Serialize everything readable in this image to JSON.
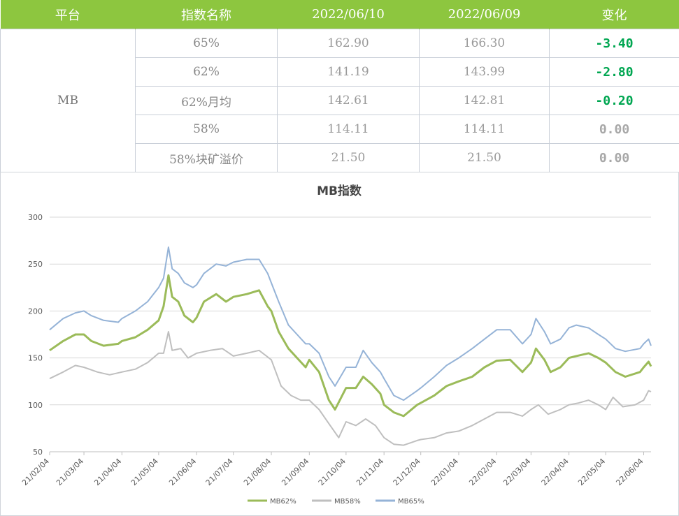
{
  "table": {
    "headers": [
      "平台",
      "指数名称",
      "2022/06/10",
      "2022/06/09",
      "变化"
    ],
    "platform": "MB",
    "rows": [
      {
        "name": "65%",
        "cur": "162.90",
        "prev": "166.30",
        "change": "-3.40"
      },
      {
        "name": "62%",
        "cur": "141.19",
        "prev": "143.99",
        "change": "-2.80"
      },
      {
        "name": "62%月均",
        "cur": "142.61",
        "prev": "142.81",
        "change": "-0.20"
      },
      {
        "name": "58%",
        "cur": "114.11",
        "prev": "114.11",
        "change": "0.00"
      },
      {
        "name": "58%块矿溢价",
        "cur": "21.50",
        "prev": "21.50",
        "change": "0.00"
      }
    ]
  },
  "colors": {
    "header_bg": "#8dc63f",
    "negative": "#00a651",
    "zero": "#a8a8a8"
  },
  "chart_data": {
    "type": "line",
    "title": "MB指数",
    "x_ticks": [
      "21/02/04",
      "21/03/04",
      "21/04/04",
      "21/05/04",
      "21/06/04",
      "21/07/04",
      "21/08/04",
      "21/09/04",
      "21/10/04",
      "21/11/04",
      "21/12/04",
      "22/01/04",
      "22/02/04",
      "22/03/04",
      "22/04/04",
      "22/05/04",
      "22/06/04"
    ],
    "ylim": [
      50,
      300
    ],
    "y_ticks": [
      50,
      100,
      150,
      200,
      250,
      300
    ],
    "grid": true,
    "legend_position": "bottom",
    "series": [
      {
        "name": "MB62%",
        "color": "#9bbb59",
        "points": [
          [
            "2021-02-04",
            158
          ],
          [
            "2021-02-15",
            168
          ],
          [
            "2021-02-25",
            175
          ],
          [
            "2021-03-04",
            175
          ],
          [
            "2021-03-10",
            168
          ],
          [
            "2021-03-20",
            163
          ],
          [
            "2021-04-01",
            165
          ],
          [
            "2021-04-04",
            168
          ],
          [
            "2021-04-15",
            172
          ],
          [
            "2021-04-25",
            180
          ],
          [
            "2021-05-04",
            190
          ],
          [
            "2021-05-08",
            205
          ],
          [
            "2021-05-12",
            238
          ],
          [
            "2021-05-15",
            215
          ],
          [
            "2021-05-20",
            210
          ],
          [
            "2021-05-25",
            195
          ],
          [
            "2021-06-01",
            188
          ],
          [
            "2021-06-04",
            193
          ],
          [
            "2021-06-10",
            210
          ],
          [
            "2021-06-20",
            218
          ],
          [
            "2021-06-28",
            210
          ],
          [
            "2021-07-04",
            215
          ],
          [
            "2021-07-15",
            218
          ],
          [
            "2021-07-25",
            222
          ],
          [
            "2021-08-01",
            205
          ],
          [
            "2021-08-04",
            200
          ],
          [
            "2021-08-10",
            178
          ],
          [
            "2021-08-18",
            160
          ],
          [
            "2021-08-25",
            150
          ],
          [
            "2021-09-01",
            140
          ],
          [
            "2021-09-04",
            148
          ],
          [
            "2021-09-12",
            135
          ],
          [
            "2021-09-20",
            105
          ],
          [
            "2021-09-25",
            95
          ],
          [
            "2021-10-04",
            118
          ],
          [
            "2021-10-12",
            118
          ],
          [
            "2021-10-18",
            130
          ],
          [
            "2021-10-25",
            122
          ],
          [
            "2021-11-01",
            112
          ],
          [
            "2021-11-04",
            100
          ],
          [
            "2021-11-12",
            92
          ],
          [
            "2021-11-20",
            88
          ],
          [
            "2021-12-01",
            100
          ],
          [
            "2021-12-04",
            102
          ],
          [
            "2021-12-15",
            110
          ],
          [
            "2021-12-25",
            120
          ],
          [
            "2022-01-04",
            125
          ],
          [
            "2022-01-15",
            130
          ],
          [
            "2022-01-25",
            140
          ],
          [
            "2022-02-04",
            147
          ],
          [
            "2022-02-15",
            148
          ],
          [
            "2022-02-25",
            135
          ],
          [
            "2022-03-04",
            145
          ],
          [
            "2022-03-08",
            160
          ],
          [
            "2022-03-15",
            148
          ],
          [
            "2022-03-20",
            135
          ],
          [
            "2022-03-28",
            140
          ],
          [
            "2022-04-04",
            150
          ],
          [
            "2022-04-10",
            152
          ],
          [
            "2022-04-20",
            155
          ],
          [
            "2022-04-28",
            150
          ],
          [
            "2022-05-04",
            145
          ],
          [
            "2022-05-12",
            135
          ],
          [
            "2022-05-20",
            130
          ],
          [
            "2022-06-01",
            135
          ],
          [
            "2022-06-04",
            140
          ],
          [
            "2022-06-08",
            146
          ],
          [
            "2022-06-10",
            141
          ]
        ]
      },
      {
        "name": "MB58%",
        "color": "#bfbfbf",
        "points": [
          [
            "2021-02-04",
            128
          ],
          [
            "2021-02-15",
            135
          ],
          [
            "2021-02-25",
            142
          ],
          [
            "2021-03-04",
            140
          ],
          [
            "2021-03-15",
            135
          ],
          [
            "2021-03-25",
            132
          ],
          [
            "2021-04-04",
            135
          ],
          [
            "2021-04-15",
            138
          ],
          [
            "2021-04-25",
            145
          ],
          [
            "2021-05-04",
            155
          ],
          [
            "2021-05-08",
            155
          ],
          [
            "2021-05-12",
            178
          ],
          [
            "2021-05-15",
            158
          ],
          [
            "2021-05-22",
            160
          ],
          [
            "2021-05-28",
            150
          ],
          [
            "2021-06-04",
            155
          ],
          [
            "2021-06-15",
            158
          ],
          [
            "2021-06-25",
            160
          ],
          [
            "2021-07-04",
            152
          ],
          [
            "2021-07-15",
            155
          ],
          [
            "2021-07-25",
            158
          ],
          [
            "2021-08-04",
            148
          ],
          [
            "2021-08-12",
            120
          ],
          [
            "2021-08-20",
            110
          ],
          [
            "2021-08-28",
            105
          ],
          [
            "2021-09-04",
            105
          ],
          [
            "2021-09-12",
            95
          ],
          [
            "2021-09-20",
            80
          ],
          [
            "2021-09-28",
            65
          ],
          [
            "2021-10-04",
            82
          ],
          [
            "2021-10-12",
            78
          ],
          [
            "2021-10-20",
            85
          ],
          [
            "2021-10-28",
            78
          ],
          [
            "2021-11-04",
            65
          ],
          [
            "2021-11-12",
            58
          ],
          [
            "2021-11-20",
            57
          ],
          [
            "2021-12-01",
            62
          ],
          [
            "2021-12-04",
            63
          ],
          [
            "2021-12-15",
            65
          ],
          [
            "2021-12-25",
            70
          ],
          [
            "2022-01-04",
            72
          ],
          [
            "2022-01-15",
            78
          ],
          [
            "2022-01-25",
            85
          ],
          [
            "2022-02-04",
            92
          ],
          [
            "2022-02-15",
            92
          ],
          [
            "2022-02-25",
            88
          ],
          [
            "2022-03-04",
            95
          ],
          [
            "2022-03-10",
            100
          ],
          [
            "2022-03-18",
            90
          ],
          [
            "2022-03-28",
            95
          ],
          [
            "2022-04-04",
            100
          ],
          [
            "2022-04-12",
            102
          ],
          [
            "2022-04-20",
            105
          ],
          [
            "2022-04-28",
            100
          ],
          [
            "2022-05-04",
            95
          ],
          [
            "2022-05-10",
            108
          ],
          [
            "2022-05-18",
            98
          ],
          [
            "2022-05-28",
            100
          ],
          [
            "2022-06-04",
            105
          ],
          [
            "2022-06-08",
            115
          ],
          [
            "2022-06-10",
            114
          ]
        ]
      },
      {
        "name": "MB65%",
        "color": "#95b3d7",
        "points": [
          [
            "2021-02-04",
            180
          ],
          [
            "2021-02-15",
            192
          ],
          [
            "2021-02-25",
            198
          ],
          [
            "2021-03-04",
            200
          ],
          [
            "2021-03-10",
            195
          ],
          [
            "2021-03-20",
            190
          ],
          [
            "2021-04-01",
            188
          ],
          [
            "2021-04-04",
            192
          ],
          [
            "2021-04-15",
            200
          ],
          [
            "2021-04-25",
            210
          ],
          [
            "2021-05-04",
            225
          ],
          [
            "2021-05-08",
            235
          ],
          [
            "2021-05-12",
            268
          ],
          [
            "2021-05-15",
            245
          ],
          [
            "2021-05-20",
            240
          ],
          [
            "2021-05-25",
            230
          ],
          [
            "2021-06-01",
            225
          ],
          [
            "2021-06-04",
            228
          ],
          [
            "2021-06-10",
            240
          ],
          [
            "2021-06-20",
            250
          ],
          [
            "2021-06-28",
            248
          ],
          [
            "2021-07-04",
            252
          ],
          [
            "2021-07-15",
            255
          ],
          [
            "2021-07-25",
            255
          ],
          [
            "2021-08-01",
            240
          ],
          [
            "2021-08-04",
            230
          ],
          [
            "2021-08-10",
            210
          ],
          [
            "2021-08-18",
            185
          ],
          [
            "2021-08-25",
            175
          ],
          [
            "2021-09-01",
            165
          ],
          [
            "2021-09-04",
            165
          ],
          [
            "2021-09-12",
            155
          ],
          [
            "2021-09-20",
            130
          ],
          [
            "2021-09-25",
            120
          ],
          [
            "2021-10-04",
            140
          ],
          [
            "2021-10-12",
            140
          ],
          [
            "2021-10-18",
            158
          ],
          [
            "2021-10-25",
            145
          ],
          [
            "2021-11-01",
            135
          ],
          [
            "2021-11-04",
            128
          ],
          [
            "2021-11-12",
            110
          ],
          [
            "2021-11-20",
            105
          ],
          [
            "2021-12-01",
            115
          ],
          [
            "2021-12-04",
            118
          ],
          [
            "2021-12-15",
            130
          ],
          [
            "2021-12-25",
            142
          ],
          [
            "2022-01-04",
            150
          ],
          [
            "2022-01-15",
            160
          ],
          [
            "2022-01-25",
            170
          ],
          [
            "2022-02-04",
            180
          ],
          [
            "2022-02-15",
            180
          ],
          [
            "2022-02-25",
            165
          ],
          [
            "2022-03-04",
            175
          ],
          [
            "2022-03-08",
            192
          ],
          [
            "2022-03-15",
            178
          ],
          [
            "2022-03-20",
            165
          ],
          [
            "2022-03-28",
            170
          ],
          [
            "2022-04-04",
            182
          ],
          [
            "2022-04-10",
            185
          ],
          [
            "2022-04-20",
            182
          ],
          [
            "2022-04-28",
            175
          ],
          [
            "2022-05-04",
            170
          ],
          [
            "2022-05-12",
            160
          ],
          [
            "2022-05-20",
            157
          ],
          [
            "2022-06-01",
            160
          ],
          [
            "2022-06-04",
            165
          ],
          [
            "2022-06-08",
            170
          ],
          [
            "2022-06-10",
            163
          ]
        ]
      }
    ]
  }
}
